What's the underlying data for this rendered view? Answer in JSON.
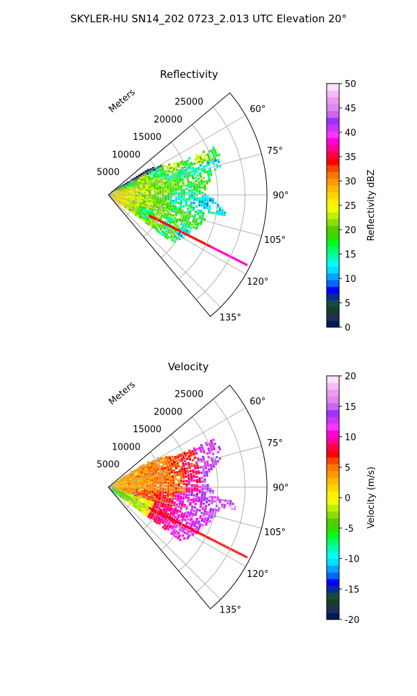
{
  "figure_title": "SKYLER-HU  SN14_202  0723_2.013 UTC Elevation 20°",
  "chart_data": [
    {
      "type": "polar-sector-ppi",
      "title": "Reflectivity",
      "radial_label": "Meters",
      "range_ticks": [
        "5000",
        "10000",
        "15000",
        "20000",
        "25000"
      ],
      "range_values": [
        5000,
        10000,
        15000,
        20000,
        25000
      ],
      "range_max": 29000,
      "angle_range": [
        50,
        140
      ],
      "angle_ticks": [
        "60°",
        "75°",
        "90°",
        "105°",
        "120°",
        "135°"
      ],
      "angle_values": [
        60,
        75,
        90,
        105,
        120,
        135
      ],
      "grid": true,
      "colorbar": {
        "label": "Reflectivity dBZ",
        "min": 0,
        "max": 50,
        "tick_labels": [
          "0",
          "5",
          "10",
          "15",
          "20",
          "25",
          "30",
          "35",
          "40",
          "45",
          "50"
        ],
        "tick_values": [
          0,
          5,
          10,
          15,
          20,
          25,
          30,
          35,
          40,
          45,
          50
        ],
        "colors": [
          "#031a5c",
          "#1f2f55",
          "#1c3b2f",
          "#154d3a",
          "#0a2a9a",
          "#0000ff",
          "#0066ff",
          "#00a4ff",
          "#00dfff",
          "#00fff0",
          "#00ffb0",
          "#00ff66",
          "#00ff1a",
          "#33dd00",
          "#55cc00",
          "#88e000",
          "#bbf000",
          "#eeff00",
          "#ffee00",
          "#ffd400",
          "#ffbb00",
          "#ff9900",
          "#ff7700",
          "#ff4400",
          "#ff0000",
          "#ff0044",
          "#ff0099",
          "#ff00dd",
          "#ff33ff",
          "#cc33ff",
          "#9933ff",
          "#cc66ee",
          "#dd88ee",
          "#ee99ee",
          "#f5bbf5",
          "#fce0fc"
        ]
      }
    },
    {
      "type": "polar-sector-ppi",
      "title": "Velocity",
      "radial_label": "Meters",
      "range_ticks": [
        "5000",
        "10000",
        "15000",
        "20000",
        "25000"
      ],
      "range_values": [
        5000,
        10000,
        15000,
        20000,
        25000
      ],
      "range_max": 29000,
      "angle_range": [
        50,
        140
      ],
      "angle_ticks": [
        "60°",
        "75°",
        "90°",
        "105°",
        "120°",
        "135°"
      ],
      "angle_values": [
        60,
        75,
        90,
        105,
        120,
        135
      ],
      "grid": true,
      "colorbar": {
        "label": "Velocity (m/s)",
        "min": -20,
        "max": 20,
        "tick_labels": [
          "-20",
          "-15",
          "-10",
          "-5",
          "0",
          "5",
          "10",
          "15",
          "20"
        ],
        "tick_values": [
          -20,
          -15,
          -10,
          -5,
          0,
          5,
          10,
          15,
          20
        ],
        "colors": [
          "#031a5c",
          "#1f2f55",
          "#1c3b2f",
          "#154d3a",
          "#0a2a9a",
          "#0000ff",
          "#0066ff",
          "#00a4ff",
          "#00dfff",
          "#00fff0",
          "#00ffb0",
          "#00ff66",
          "#00ff1a",
          "#33dd00",
          "#55cc00",
          "#88e000",
          "#bbf000",
          "#eeff00",
          "#ffee00",
          "#ffd400",
          "#ffbb00",
          "#ff9900",
          "#ff7700",
          "#ff4400",
          "#ff0000",
          "#ff0044",
          "#ff0099",
          "#ff00dd",
          "#ff33ff",
          "#cc33ff",
          "#9933ff",
          "#cc66ee",
          "#dd88ee",
          "#ee99ee",
          "#f5bbf5",
          "#fce0fc"
        ]
      }
    }
  ]
}
